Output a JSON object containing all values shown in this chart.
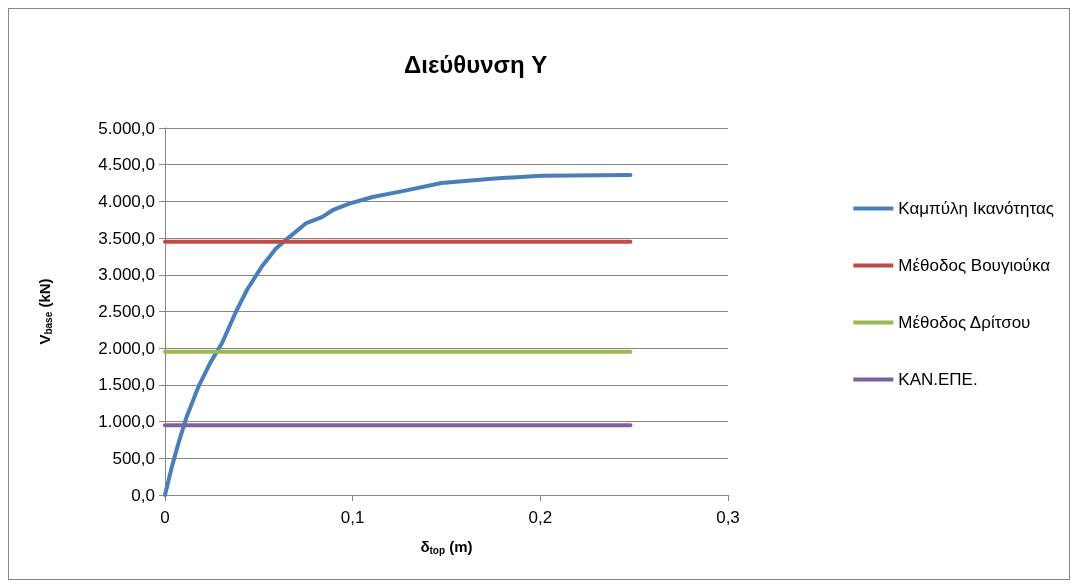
{
  "chart_data": {
    "type": "line",
    "title": "Διεύθυνση Y",
    "xlabel": "δ$_{top}$ (m)",
    "ylabel": "V$_{base}$ (kN)",
    "series": [
      {
        "name": "Καμπύλη Ικανότητας",
        "color": "#4a7ebb",
        "x": [
          0,
          0.0036,
          0.0071,
          0.0116,
          0.0179,
          0.0241,
          0.0304,
          0.0375,
          0.0438,
          0.0518,
          0.0589,
          0.066,
          0.075,
          0.0839,
          0.0893,
          0.0982,
          0.1107,
          0.1286,
          0.1473,
          0.174,
          0.2009,
          0.248
        ],
        "values": [
          0,
          380,
          700,
          1070,
          1480,
          1800,
          2070,
          2480,
          2800,
          3120,
          3350,
          3510,
          3700,
          3790,
          3880,
          3970,
          4060,
          4150,
          4250,
          4310,
          4350,
          4360
        ]
      },
      {
        "name": "Μέθοδος Βουγιούκα",
        "color": "#be4b48",
        "x": [
          0,
          0.248
        ],
        "values": [
          3450,
          3450
        ]
      },
      {
        "name": "Μέθοδος Δρίτσου",
        "color": "#98b954",
        "x": [
          0,
          0.248
        ],
        "values": [
          1950,
          1950
        ]
      },
      {
        "name": "ΚΑΝ.ΕΠΕ.",
        "color": "#7d60a0",
        "x": [
          0,
          0.248
        ],
        "values": [
          950,
          950
        ]
      }
    ],
    "xlim": [
      0,
      0.3
    ],
    "xticks": [
      0,
      {
        "value": 0.1,
        "label": "0,1"
      },
      {
        "value": 0.2,
        "label": "0,2"
      },
      {
        "value": 0.3,
        "label": "0,3"
      }
    ],
    "ylim": [
      0,
      5000
    ],
    "yticks": [
      {
        "value": 0,
        "label": "0,0"
      },
      {
        "value": 500,
        "label": "500,0"
      },
      {
        "value": 1000,
        "label": "1.000,0"
      },
      {
        "value": 1500,
        "label": "1.500,0"
      },
      {
        "value": 2000,
        "label": "2.000,0"
      },
      {
        "value": 2500,
        "label": "2.500,0"
      },
      {
        "value": 3000,
        "label": "3.000,0"
      },
      {
        "value": 3500,
        "label": "3.500,0"
      },
      {
        "value": 4000,
        "label": "4.000,0"
      },
      {
        "value": 4500,
        "label": "4.500,0"
      },
      {
        "value": 5000,
        "label": "5.000,0"
      }
    ],
    "grid": "y",
    "legend": "right",
    "marker": "none",
    "line_style": "solid"
  }
}
